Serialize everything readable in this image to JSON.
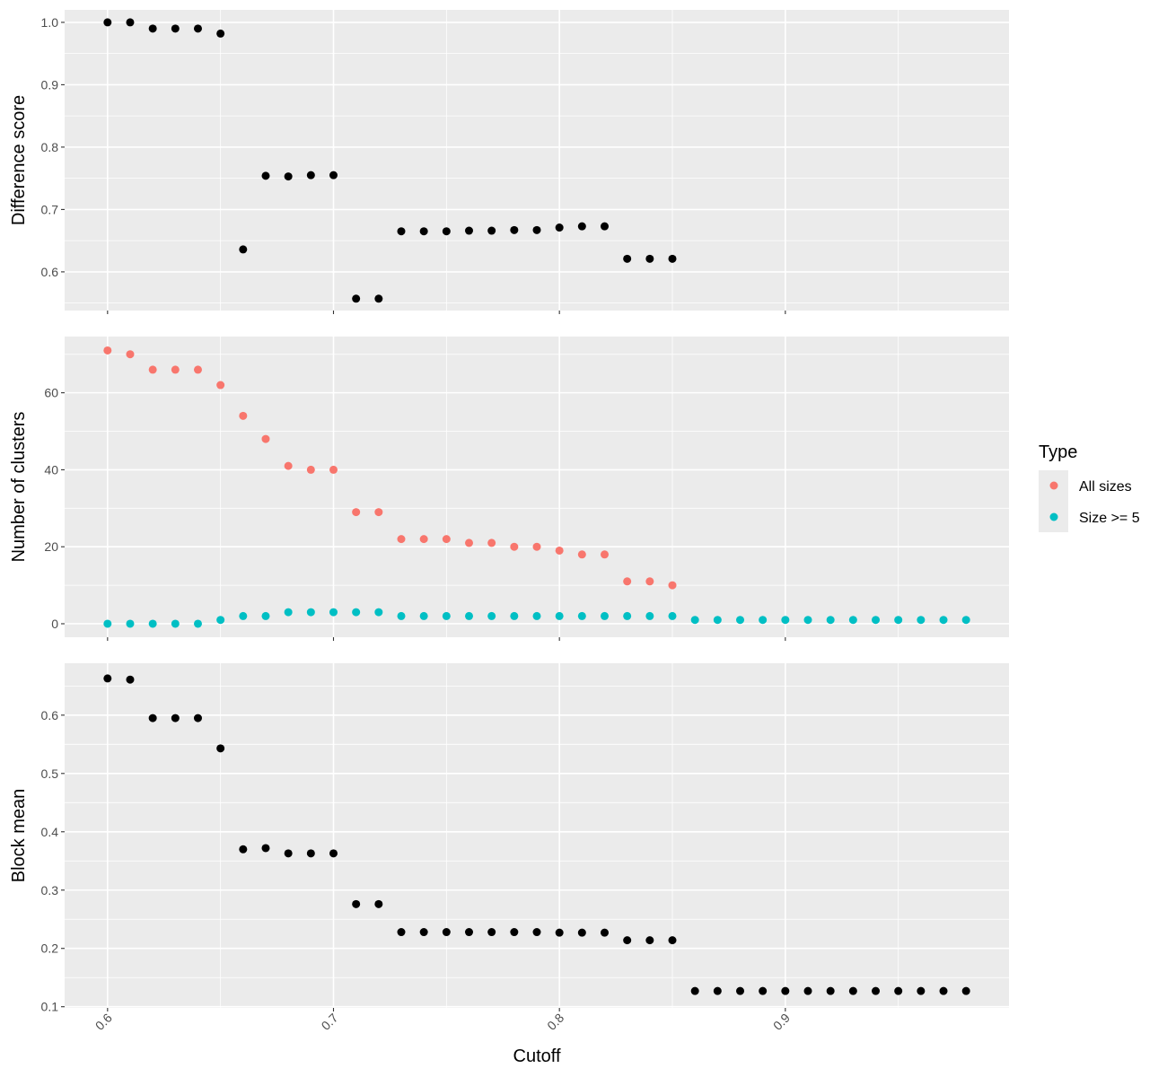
{
  "chart_data": {
    "type": "scatter",
    "xlabel": "Cutoff",
    "x_ticks": [
      "0.6",
      "0.7",
      "0.8",
      "0.9"
    ],
    "legend": {
      "title": "Type",
      "placement": "right",
      "items": [
        {
          "label": "All sizes",
          "color": "#F8766D"
        },
        {
          "label": "Size >= 5",
          "color": "#00BFC4"
        }
      ]
    },
    "colors": {
      "panel_bg": "#EBEBEB",
      "grid": "#FFFFFF",
      "default_point": "#000000"
    },
    "panels": [
      {
        "ylabel": "Difference score",
        "y_ticks": [
          "0.6",
          "0.7",
          "0.8",
          "0.9",
          "1.0"
        ],
        "ylim": [
          0.538,
          1.02
        ],
        "series": [
          {
            "x": [
              0.6,
              0.61,
              0.62,
              0.63,
              0.64,
              0.65,
              0.66,
              0.67,
              0.68,
              0.69,
              0.7,
              0.71,
              0.72,
              0.73,
              0.74,
              0.75,
              0.76,
              0.77,
              0.78,
              0.79,
              0.8,
              0.81,
              0.82,
              0.83,
              0.84,
              0.85
            ],
            "y": [
              1.0,
              1.0,
              0.99,
              0.99,
              0.99,
              0.982,
              0.636,
              0.754,
              0.753,
              0.755,
              0.755,
              0.557,
              0.557,
              0.665,
              0.665,
              0.665,
              0.666,
              0.666,
              0.667,
              0.667,
              0.671,
              0.673,
              0.673,
              0.621,
              0.621,
              0.621
            ]
          }
        ]
      },
      {
        "ylabel": "Number of clusters",
        "y_ticks": [
          "0",
          "20",
          "40",
          "60"
        ],
        "ylim": [
          -3.5,
          74.6
        ],
        "series": [
          {
            "name": "All sizes",
            "x": [
              0.6,
              0.61,
              0.62,
              0.63,
              0.64,
              0.65,
              0.66,
              0.67,
              0.68,
              0.69,
              0.7,
              0.71,
              0.72,
              0.73,
              0.74,
              0.75,
              0.76,
              0.77,
              0.78,
              0.79,
              0.8,
              0.81,
              0.82,
              0.83,
              0.84,
              0.85
            ],
            "y": [
              71,
              70,
              66,
              66,
              66,
              62,
              54,
              48,
              41,
              40,
              40,
              29,
              29,
              22,
              22,
              22,
              21,
              21,
              20,
              20,
              19,
              18,
              18,
              11,
              11,
              10
            ]
          },
          {
            "name": "Size >= 5",
            "x": [
              0.6,
              0.61,
              0.62,
              0.63,
              0.64,
              0.65,
              0.66,
              0.67,
              0.68,
              0.69,
              0.7,
              0.71,
              0.72,
              0.73,
              0.74,
              0.75,
              0.76,
              0.77,
              0.78,
              0.79,
              0.8,
              0.81,
              0.82,
              0.83,
              0.84,
              0.85,
              0.86,
              0.87,
              0.88,
              0.89,
              0.9,
              0.91,
              0.92,
              0.93,
              0.94,
              0.95,
              0.96,
              0.97,
              0.98
            ],
            "y": [
              0,
              0,
              0,
              0,
              0,
              1,
              2,
              2,
              3,
              3,
              3,
              3,
              3,
              2,
              2,
              2,
              2,
              2,
              2,
              2,
              2,
              2,
              2,
              2,
              2,
              2,
              1,
              1,
              1,
              1,
              1,
              1,
              1,
              1,
              1,
              1,
              1,
              1,
              1
            ]
          }
        ]
      },
      {
        "ylabel": "Block mean",
        "y_ticks": [
          "0.1",
          "0.2",
          "0.3",
          "0.4",
          "0.5",
          "0.6"
        ],
        "ylim": [
          0.098,
          0.689
        ],
        "series": [
          {
            "x": [
              0.6,
              0.61,
              0.62,
              0.63,
              0.64,
              0.65,
              0.66,
              0.67,
              0.68,
              0.69,
              0.7,
              0.71,
              0.72,
              0.73,
              0.74,
              0.75,
              0.76,
              0.77,
              0.78,
              0.79,
              0.8,
              0.81,
              0.82,
              0.83,
              0.84,
              0.85,
              0.86,
              0.87,
              0.88,
              0.89,
              0.9,
              0.91,
              0.92,
              0.93,
              0.94,
              0.95,
              0.96,
              0.97,
              0.98
            ],
            "y": [
              0.663,
              0.661,
              0.595,
              0.595,
              0.595,
              0.543,
              0.37,
              0.372,
              0.363,
              0.363,
              0.363,
              0.276,
              0.276,
              0.228,
              0.228,
              0.228,
              0.228,
              0.228,
              0.228,
              0.228,
              0.227,
              0.227,
              0.227,
              0.214,
              0.214,
              0.214,
              0.127,
              0.127,
              0.127,
              0.127,
              0.127,
              0.127,
              0.127,
              0.127,
              0.127,
              0.127,
              0.127,
              0.127,
              0.127
            ]
          }
        ]
      }
    ]
  }
}
